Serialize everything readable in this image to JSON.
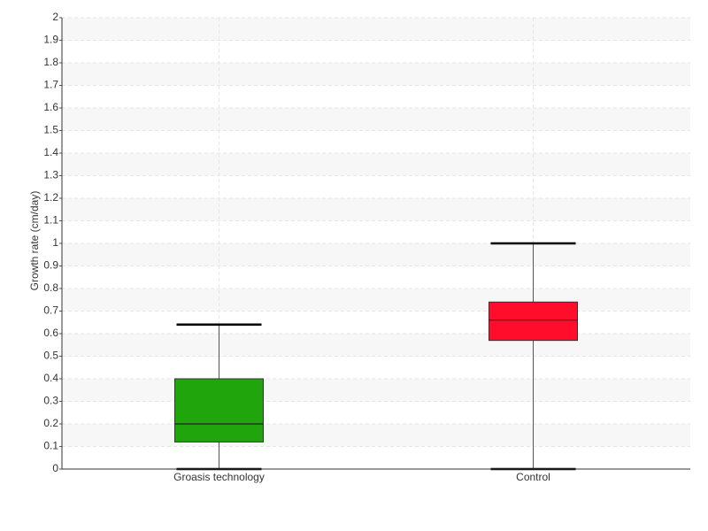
{
  "chart_data": {
    "type": "box",
    "y_label": "Growth rate (cm/day)",
    "categories": [
      "Groasis technology",
      "Control"
    ],
    "boxes": [
      {
        "min": 0,
        "q1": 0.12,
        "median": 0.2,
        "q3": 0.4,
        "max": 0.64
      },
      {
        "min": 0,
        "q1": 0.57,
        "median": 0.66,
        "q3": 0.74,
        "max": 1
      }
    ],
    "colors": [
      "#21a50d",
      "#ff0d2a"
    ],
    "ylim": [
      0,
      2
    ],
    "yticks": [
      0,
      0.1,
      0.2,
      0.3,
      0.4,
      0.5,
      0.6,
      0.7,
      0.8,
      0.9,
      1,
      1.1,
      1.2,
      1.3,
      1.4,
      1.5,
      1.6,
      1.7,
      1.8,
      1.9,
      2
    ],
    "grid": true
  }
}
